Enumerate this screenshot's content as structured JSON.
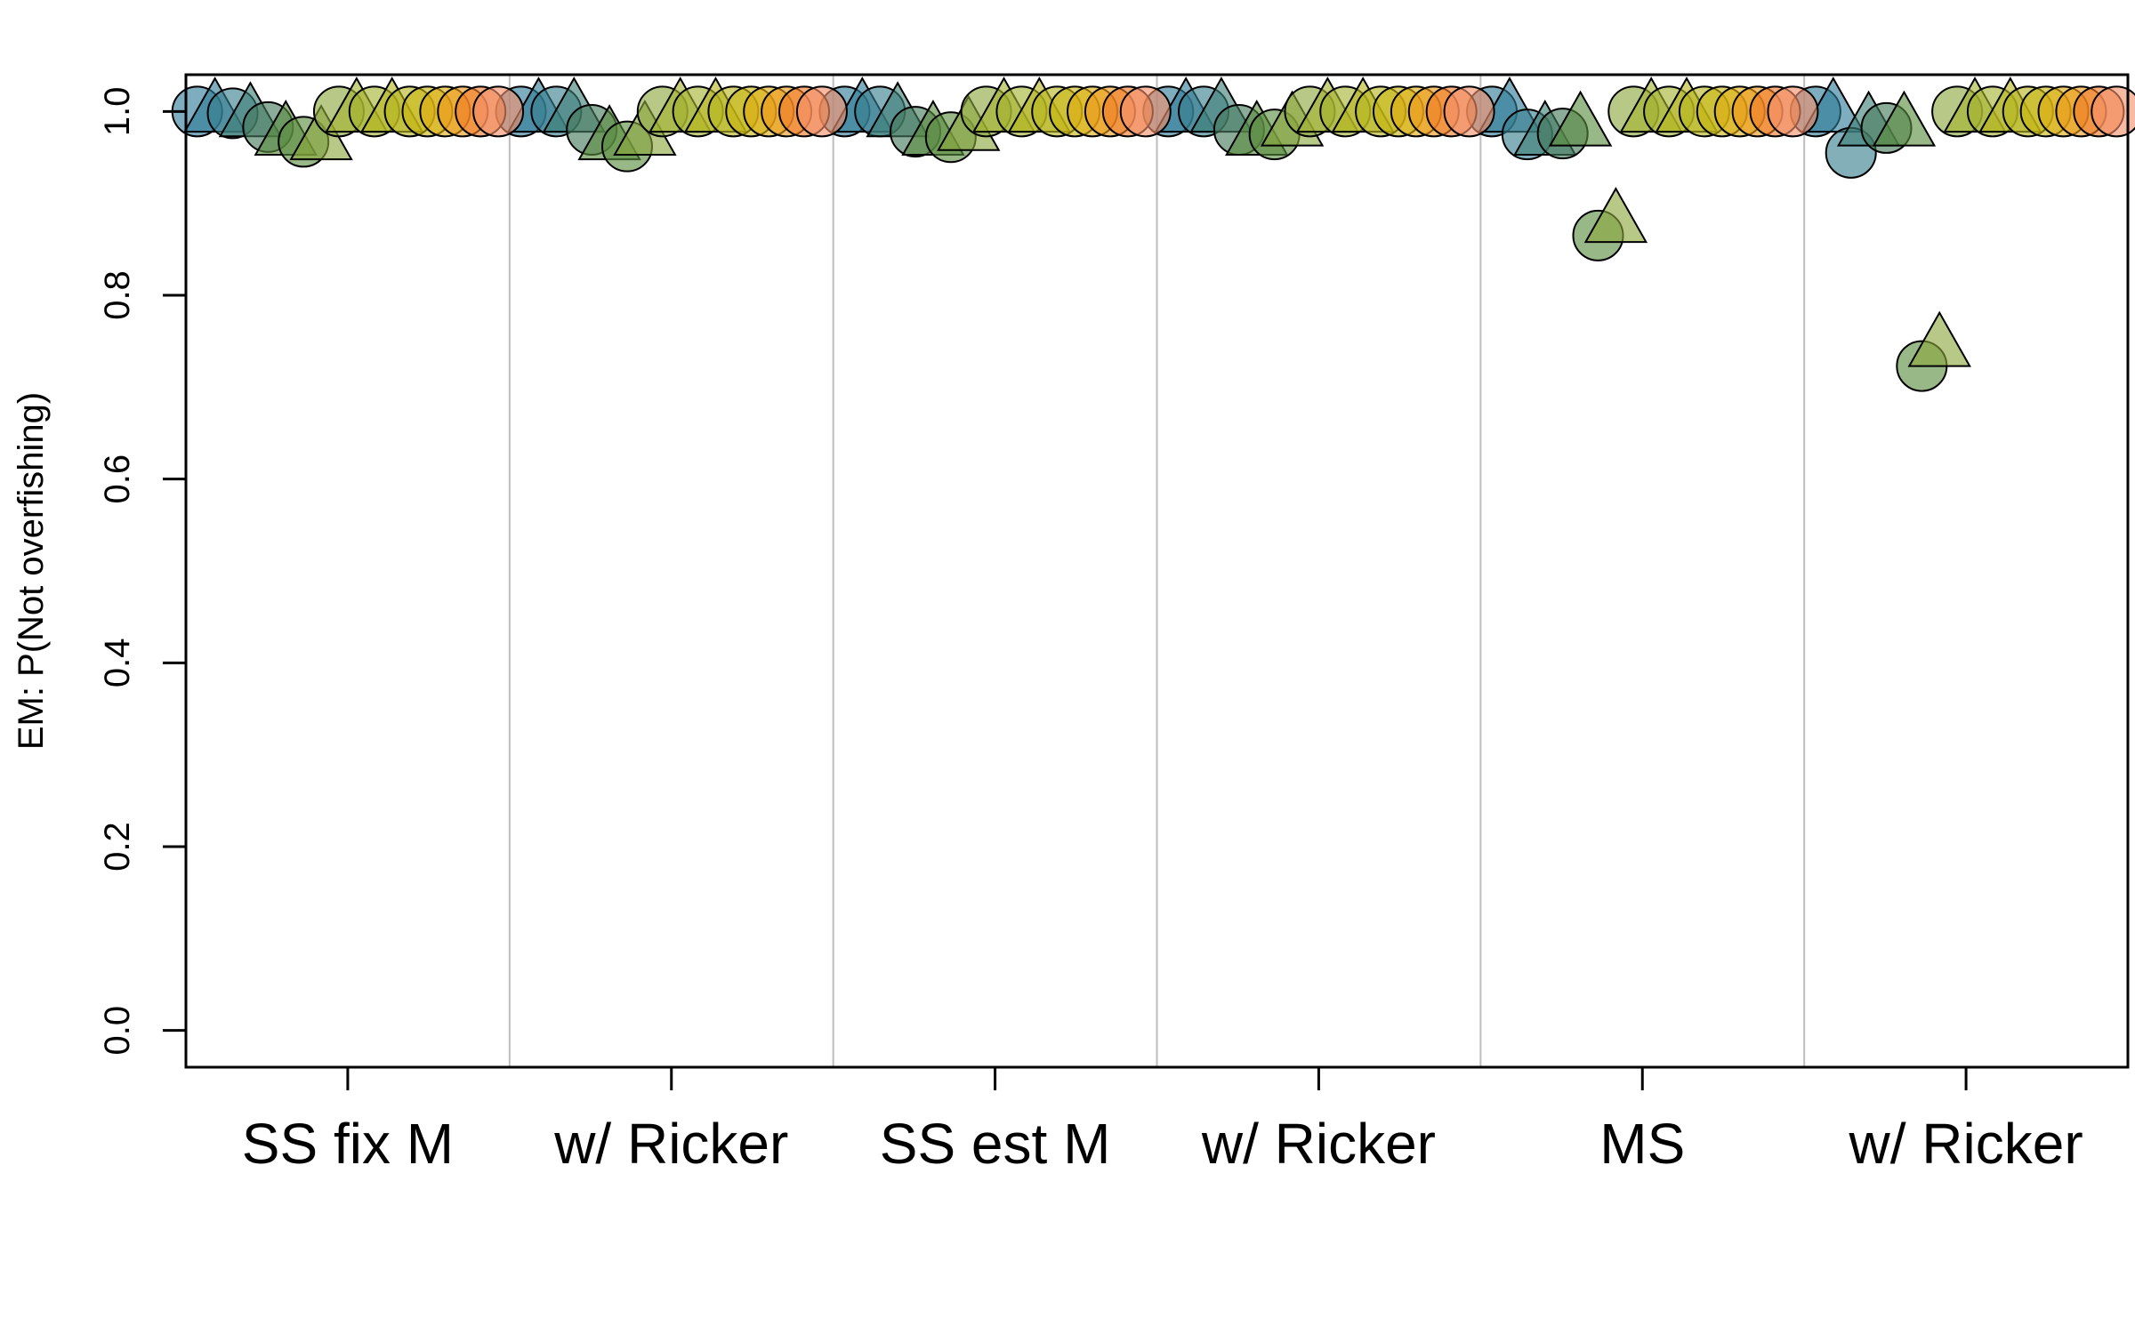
{
  "chart_data": {
    "type": "scatter",
    "title": "",
    "xlabel": "",
    "ylabel": "EM: P(Not overfishing)",
    "ylim": [
      -0.04,
      1.04
    ],
    "yticks": [
      0.0,
      0.2,
      0.4,
      0.6,
      0.8,
      1.0
    ],
    "ytick_labels": [
      "0.0",
      "0.2",
      "0.4",
      "0.6",
      "0.8",
      "1.0"
    ],
    "grid": false,
    "legend": "none",
    "categories": [
      "SS fix M",
      "w/ Ricker",
      "SS est M",
      "w/ Ricker",
      "MS",
      "w/ Ricker"
    ],
    "marker_shapes": [
      "circle",
      "triangle"
    ],
    "palette": [
      "#2f7a97",
      "#377e8e",
      "#3f7f77",
      "#46795c",
      "#5b8c3f",
      "#8aa73d",
      "#a4b32e",
      "#b7b61f",
      "#c9b611",
      "#dfae12",
      "#ee9a1a",
      "#f07a2a",
      "#f1813c",
      "#f4906a"
    ],
    "series": [
      {
        "shape": "circle",
        "color": "#2f7a97",
        "values": [
          1.0,
          1.0,
          1.0,
          1.0,
          1.0,
          1.0
        ]
      },
      {
        "shape": "triangle",
        "color": "#2f7a97",
        "values": [
          1.0,
          1.0,
          1.0,
          1.0,
          1.0,
          1.0
        ]
      },
      {
        "shape": "circle",
        "color": "#377e8e",
        "values": [
          0.998,
          1.0,
          1.0,
          1.0,
          0.975,
          0.955
        ]
      },
      {
        "shape": "triangle",
        "color": "#3f7f77",
        "values": [
          0.995,
          1.0,
          0.995,
          1.0,
          0.975,
          0.985
        ]
      },
      {
        "shape": "circle",
        "color": "#46795c",
        "values": [
          0.983,
          0.98,
          0.978,
          0.98,
          0.976,
          0.982
        ]
      },
      {
        "shape": "triangle",
        "color": "#5b8c3f",
        "values": [
          0.975,
          0.97,
          0.975,
          0.975,
          0.985,
          0.985
        ]
      },
      {
        "shape": "circle",
        "color": "#5b8c3f",
        "values": [
          0.967,
          0.962,
          0.972,
          0.975,
          0.865,
          0.723
        ]
      },
      {
        "shape": "triangle",
        "color": "#8aa73d",
        "values": [
          0.97,
          0.975,
          0.98,
          0.985,
          0.88,
          0.745
        ]
      },
      {
        "shape": "circle",
        "color": "#8aa73d",
        "values": [
          1.0,
          1.0,
          1.0,
          1.0,
          1.0,
          1.0
        ]
      },
      {
        "shape": "triangle",
        "color": "#a4b32e",
        "values": [
          1.0,
          1.0,
          1.0,
          1.0,
          1.0,
          1.0
        ]
      },
      {
        "shape": "circle",
        "color": "#a4b32e",
        "values": [
          1.0,
          1.0,
          1.0,
          1.0,
          1.0,
          1.0
        ]
      },
      {
        "shape": "triangle",
        "color": "#b7b61f",
        "values": [
          1.0,
          1.0,
          1.0,
          1.0,
          1.0,
          1.0
        ]
      },
      {
        "shape": "circle",
        "color": "#b7b61f",
        "values": [
          1.0,
          1.0,
          1.0,
          1.0,
          1.0,
          1.0
        ]
      },
      {
        "shape": "circle",
        "color": "#c9b611",
        "values": [
          1.0,
          1.0,
          1.0,
          1.0,
          1.0,
          1.0
        ]
      },
      {
        "shape": "circle",
        "color": "#dfae12",
        "values": [
          1.0,
          1.0,
          1.0,
          1.0,
          1.0,
          1.0
        ]
      },
      {
        "shape": "circle",
        "color": "#ee9a1a",
        "values": [
          1.0,
          1.0,
          1.0,
          1.0,
          1.0,
          1.0
        ]
      },
      {
        "shape": "circle",
        "color": "#f07a2a",
        "values": [
          1.0,
          1.0,
          1.0,
          1.0,
          1.0,
          1.0
        ]
      },
      {
        "shape": "circle",
        "color": "#f4906a",
        "values": [
          1.0,
          1.0,
          1.0,
          1.0,
          1.0,
          1.0
        ]
      }
    ]
  }
}
